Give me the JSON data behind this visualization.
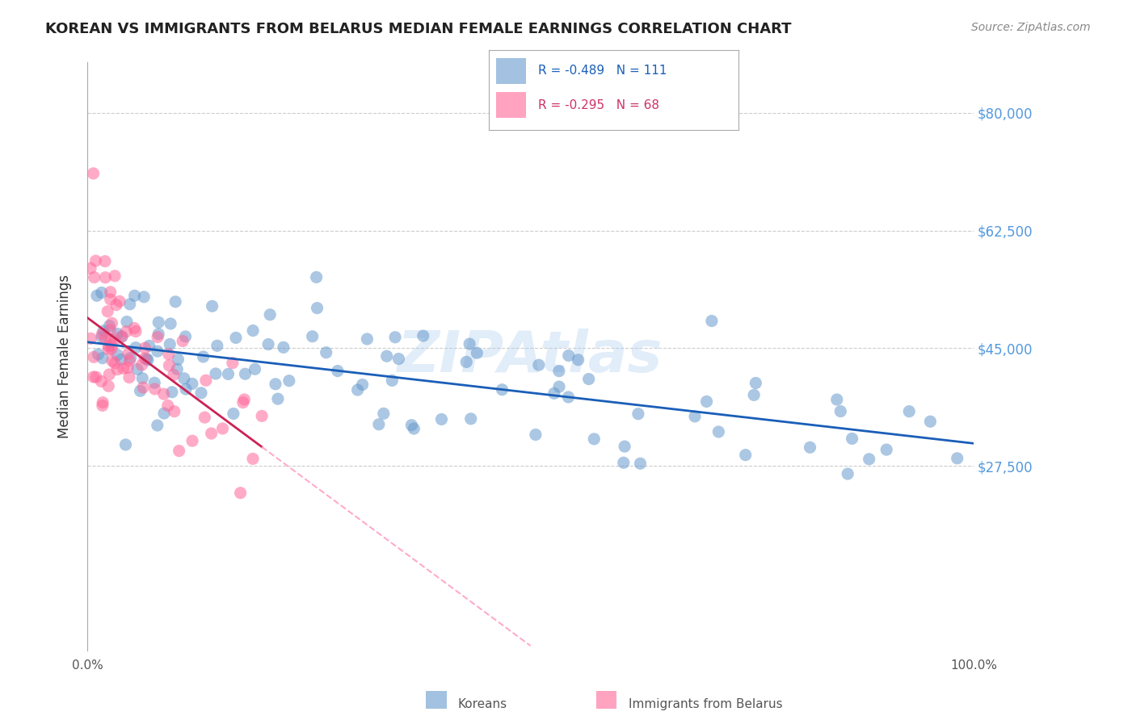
{
  "title": "KOREAN VS IMMIGRANTS FROM BELARUS MEDIAN FEMALE EARNINGS CORRELATION CHART",
  "source": "Source: ZipAtlas.com",
  "ylabel": "Median Female Earnings",
  "watermark": "ZIPAtlas",
  "legend_korean": "R = -0.489   N = 111",
  "legend_belarus": "R = -0.295   N = 68",
  "legend_label1": "Koreans",
  "legend_label2": "Immigrants from Belarus",
  "xlim": [
    0.0,
    1.0
  ],
  "ylim": [
    0,
    87500
  ],
  "color_korean": "#6699cc",
  "color_belarus": "#ff6699",
  "trendline_korean_color": "#1a5eb8",
  "trendline_belarus_color": "#cc2255",
  "trendline_belarus_dashed_color": "#ffaacc",
  "background_color": "#ffffff",
  "grid_color": "#cccccc"
}
